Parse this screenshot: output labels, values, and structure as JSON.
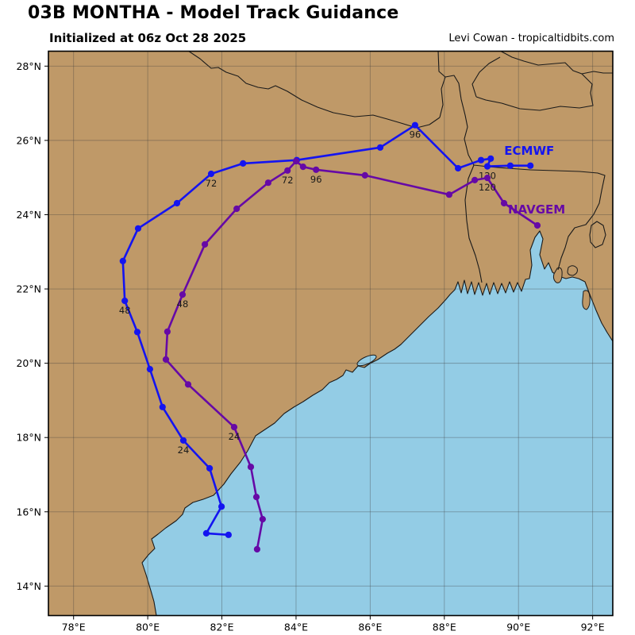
{
  "header": {
    "title": "03B MONTHA - Model Track Guidance",
    "subtitle": "Initialized at 06z Oct 28 2025",
    "credit": "Levi Cowan - tropicaltidbits.com"
  },
  "axes": {
    "x_ticks": [
      "78°E",
      "80°E",
      "82°E",
      "84°E",
      "86°E",
      "88°E",
      "90°E",
      "92°E"
    ],
    "x_tick_lons": [
      78,
      80,
      82,
      84,
      86,
      88,
      90,
      92
    ],
    "y_ticks": [
      "14°N",
      "16°N",
      "18°N",
      "20°N",
      "22°N",
      "24°N",
      "26°N",
      "28°N"
    ],
    "y_tick_lats": [
      14,
      16,
      18,
      20,
      22,
      24,
      26,
      28
    ]
  },
  "colors": {
    "land": "#BF9968",
    "ocean": "#93CCE5",
    "coastline": "#1a1a1a",
    "border": "#1a1a1a",
    "grid": "rgba(60,60,60,0.38)",
    "ecmwf": "#1414F0",
    "navgem": "#6609A6",
    "hour_label": "#1a1a1a"
  },
  "tracks": [
    {
      "name": "ECMWF",
      "color_key": "ecmwf",
      "label": {
        "text": "ECMWF",
        "lon": 90.29,
        "lat": 25.61
      },
      "points": [
        {
          "lon": 82.18,
          "lat": 15.38
        },
        {
          "lon": 81.58,
          "lat": 15.42
        },
        {
          "lon": 81.99,
          "lat": 16.14
        },
        {
          "lon": 81.67,
          "lat": 17.17
        },
        {
          "lon": 80.96,
          "lat": 17.92
        },
        {
          "lon": 80.4,
          "lat": 18.82
        },
        {
          "lon": 80.06,
          "lat": 19.84
        },
        {
          "lon": 79.72,
          "lat": 20.84
        },
        {
          "lon": 79.38,
          "lat": 21.68
        },
        {
          "lon": 79.33,
          "lat": 22.75
        },
        {
          "lon": 79.74,
          "lat": 23.63
        },
        {
          "lon": 80.79,
          "lat": 24.31
        },
        {
          "lon": 81.71,
          "lat": 25.1
        },
        {
          "lon": 82.57,
          "lat": 25.38
        },
        {
          "lon": 84.02,
          "lat": 25.47
        },
        {
          "lon": 86.27,
          "lat": 25.81
        },
        {
          "lon": 87.21,
          "lat": 26.41
        },
        {
          "lon": 88.37,
          "lat": 25.25
        },
        {
          "lon": 88.99,
          "lat": 25.47
        },
        {
          "lon": 89.25,
          "lat": 25.51
        },
        {
          "lon": 89.16,
          "lat": 25.3
        },
        {
          "lon": 89.78,
          "lat": 25.32
        },
        {
          "lon": 90.32,
          "lat": 25.32
        }
      ],
      "hour_labels": [
        {
          "index": 4,
          "text": "24"
        },
        {
          "index": 8,
          "text": "48"
        },
        {
          "index": 12,
          "text": "72"
        },
        {
          "index": 16,
          "text": "96"
        },
        {
          "index": 20,
          "text": "120"
        }
      ]
    },
    {
      "name": "NAVGEM",
      "color_key": "navgem",
      "label": {
        "text": "NAVGEM",
        "lon": 90.49,
        "lat": 24.03
      },
      "points": [
        {
          "lon": 82.95,
          "lat": 14.99
        },
        {
          "lon": 83.1,
          "lat": 15.8
        },
        {
          "lon": 82.93,
          "lat": 16.4
        },
        {
          "lon": 82.78,
          "lat": 17.21
        },
        {
          "lon": 82.33,
          "lat": 18.28
        },
        {
          "lon": 81.09,
          "lat": 19.43
        },
        {
          "lon": 80.49,
          "lat": 20.1
        },
        {
          "lon": 80.53,
          "lat": 20.85
        },
        {
          "lon": 80.94,
          "lat": 21.85
        },
        {
          "lon": 81.54,
          "lat": 23.2
        },
        {
          "lon": 82.4,
          "lat": 24.16
        },
        {
          "lon": 83.25,
          "lat": 24.86
        },
        {
          "lon": 83.77,
          "lat": 25.19
        },
        {
          "lon": 84.0,
          "lat": 25.44
        },
        {
          "lon": 84.19,
          "lat": 25.29
        },
        {
          "lon": 84.54,
          "lat": 25.21
        },
        {
          "lon": 85.86,
          "lat": 25.06
        },
        {
          "lon": 88.13,
          "lat": 24.54
        },
        {
          "lon": 88.82,
          "lat": 24.93
        },
        {
          "lon": 89.16,
          "lat": 24.99
        },
        {
          "lon": 89.61,
          "lat": 24.31
        },
        {
          "lon": 90.51,
          "lat": 23.71
        }
      ],
      "hour_labels": [
        {
          "index": 4,
          "text": "24"
        },
        {
          "index": 8,
          "text": "48"
        },
        {
          "index": 12,
          "text": "72"
        },
        {
          "index": 15,
          "text": "96"
        },
        {
          "index": 19,
          "text": "120"
        }
      ]
    }
  ]
}
